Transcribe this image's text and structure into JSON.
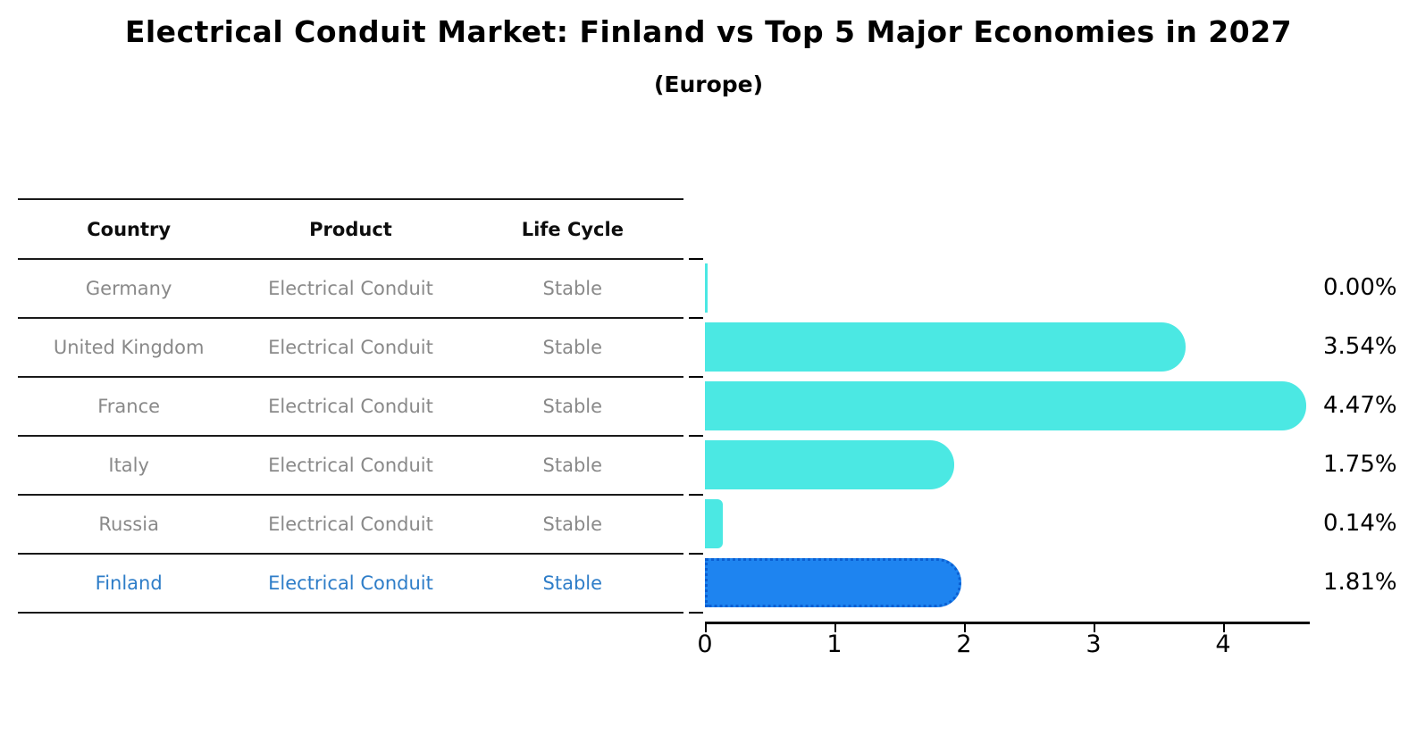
{
  "title": "Electrical Conduit Market: Finland vs Top 5 Major Economies in 2027",
  "subtitle": "(Europe)",
  "table": {
    "headers": [
      "Country",
      "Product",
      "Life Cycle"
    ],
    "rows": [
      {
        "country": "Germany",
        "product": "Electrical Conduit",
        "life_cycle": "Stable",
        "highlight": false
      },
      {
        "country": "United Kingdom",
        "product": "Electrical Conduit",
        "life_cycle": "Stable",
        "highlight": false
      },
      {
        "country": "France",
        "product": "Electrical Conduit",
        "life_cycle": "Stable",
        "highlight": false
      },
      {
        "country": "Italy",
        "product": "Electrical Conduit",
        "life_cycle": "Stable",
        "highlight": false
      },
      {
        "country": "Russia",
        "product": "Electrical Conduit",
        "life_cycle": "Stable",
        "highlight": false
      },
      {
        "country": "Finland",
        "product": "Electrical Conduit",
        "life_cycle": "Stable",
        "highlight": true
      }
    ]
  },
  "chart_data": {
    "type": "bar",
    "orientation": "horizontal",
    "title": "Electrical Conduit Market: Finland vs Top 5 Major Economies in 2027 (Europe)",
    "categories": [
      "Germany",
      "United Kingdom",
      "France",
      "Italy",
      "Russia",
      "Finland"
    ],
    "values": [
      0.0,
      3.54,
      4.47,
      1.75,
      0.14,
      1.81
    ],
    "value_labels": [
      "0.00%",
      "3.54%",
      "4.47%",
      "1.75%",
      "0.14%",
      "1.81%"
    ],
    "x_ticks": [
      "0",
      "1",
      "2",
      "3",
      "4"
    ],
    "xlim": [
      0,
      4.67
    ],
    "grid": false,
    "legend": "none",
    "bar_color": "#4be8e3",
    "highlight_color": "#1e84f0",
    "highlight_index": 5,
    "highlight_text_color": "#2e7dc8"
  },
  "layout_colors": {
    "background": "#ffffff",
    "table_line": "#1a1a1a",
    "row_text_gray": "#898989"
  }
}
